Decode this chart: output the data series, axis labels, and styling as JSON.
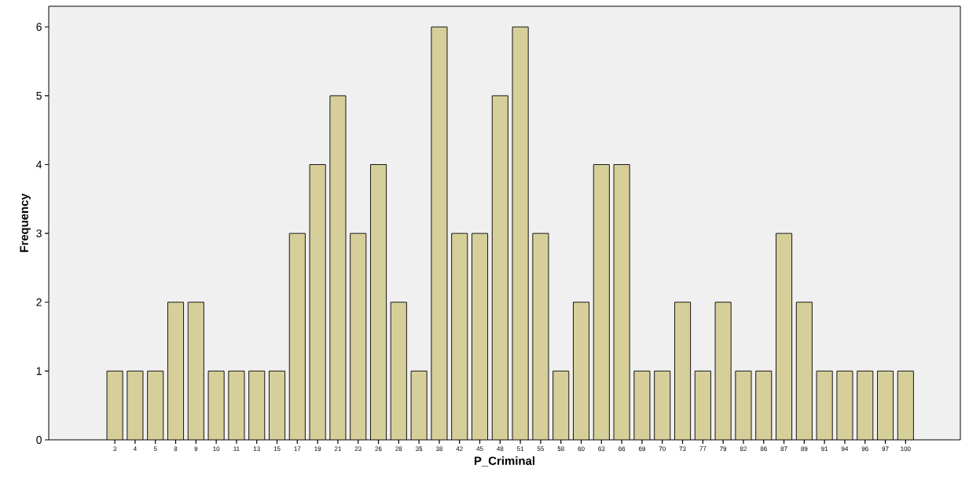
{
  "chart_data": {
    "type": "bar",
    "xlabel": "P_Criminal",
    "ylabel": "Frequency",
    "categories": [
      "3",
      "4",
      "5",
      "8",
      "9",
      "10",
      "11",
      "13",
      "15",
      "17",
      "19",
      "21",
      "23",
      "26",
      "28",
      "35",
      "38",
      "42",
      "45",
      "48",
      "51",
      "55",
      "58",
      "60",
      "63",
      "66",
      "69",
      "70",
      "73",
      "77",
      "79",
      "82",
      "86",
      "87",
      "89",
      "91",
      "94",
      "96",
      "97",
      "100"
    ],
    "values": [
      1,
      1,
      1,
      2,
      2,
      1,
      1,
      1,
      1,
      3,
      4,
      5,
      3,
      4,
      2,
      1,
      6,
      3,
      3,
      5,
      6,
      3,
      1,
      2,
      4,
      4,
      1,
      1,
      2,
      1,
      2,
      1,
      1,
      3,
      2,
      1,
      1,
      1,
      1,
      1
    ],
    "color": "#d6cf9a",
    "ylim": [
      0,
      6.3
    ],
    "yticks": [
      {
        "value": 0,
        "label": "0"
      },
      {
        "value": 1,
        "label": "1"
      },
      {
        "value": 2,
        "label": "2"
      },
      {
        "value": 3,
        "label": "3"
      },
      {
        "value": 4,
        "label": "4"
      },
      {
        "value": 5,
        "label": "5"
      },
      {
        "value": 6,
        "label": "6"
      }
    ],
    "grid": false
  }
}
